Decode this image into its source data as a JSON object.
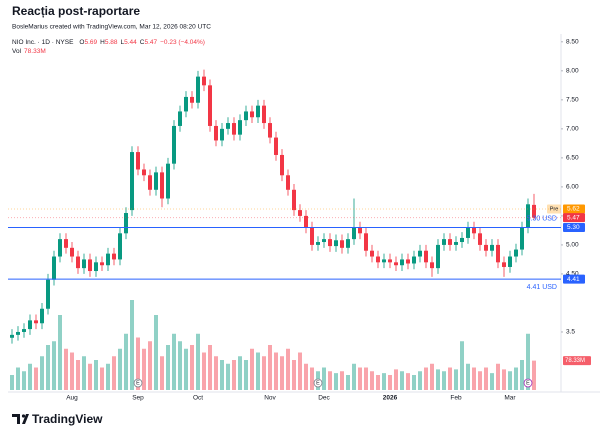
{
  "chart_data": {
    "type": "candlestick",
    "title": "Reacția post-raportare",
    "subtitle": "BosleMarius created with TradingView.com, Mar 12, 2026 08:20 UTC",
    "symbol": "NIO Inc. · 1D · NYSE",
    "ohlc_letters": [
      "O",
      "H",
      "L",
      "C"
    ],
    "change": "−0.23 (−4.04%)",
    "volume_title": "Vol",
    "last_volume_label": "78.33M",
    "earnings_marker": "E",
    "branding": "TradingView",
    "up_color": "#089981",
    "down_color": "#f23645",
    "categories": [
      null,
      null,
      null,
      null,
      null,
      null,
      null,
      null,
      null,
      null,
      "Aug",
      null,
      null,
      null,
      null,
      null,
      null,
      null,
      null,
      null,
      null,
      "Sep",
      null,
      null,
      null,
      null,
      null,
      null,
      null,
      null,
      null,
      "Oct",
      null,
      null,
      null,
      null,
      null,
      null,
      null,
      null,
      null,
      null,
      null,
      "Nov",
      null,
      null,
      null,
      null,
      null,
      null,
      null,
      null,
      "Dec",
      null,
      null,
      null,
      null,
      null,
      null,
      null,
      null,
      null,
      null,
      "2026",
      null,
      null,
      null,
      null,
      null,
      null,
      null,
      null,
      null,
      null,
      "Feb",
      null,
      null,
      null,
      null,
      null,
      null,
      null,
      null,
      "Mar",
      null,
      null,
      null,
      null
    ],
    "open": [
      3.4,
      3.45,
      3.5,
      3.55,
      3.7,
      3.65,
      3.9,
      4.4,
      4.8,
      5.1,
      4.95,
      4.8,
      4.6,
      4.75,
      4.55,
      4.7,
      4.65,
      4.85,
      4.75,
      5.2,
      5.6,
      6.6,
      6.3,
      6.2,
      5.95,
      6.25,
      5.8,
      6.4,
      7.05,
      7.3,
      7.55,
      7.45,
      7.9,
      7.75,
      7.05,
      6.8,
      7.0,
      7.1,
      6.9,
      7.15,
      7.3,
      7.2,
      7.4,
      7.1,
      6.85,
      6.55,
      6.2,
      5.95,
      5.6,
      5.5,
      5.3,
      5.0,
      5.05,
      5.1,
      4.98,
      5.08,
      4.95,
      5.1,
      5.3,
      5.2,
      4.9,
      4.8,
      4.7,
      4.75,
      4.7,
      4.65,
      4.75,
      4.68,
      4.8,
      4.9,
      4.7,
      4.6,
      5.0,
      5.1,
      5.0,
      5.05,
      5.12,
      5.3,
      5.2,
      5.0,
      4.9,
      5.0,
      4.7,
      4.62,
      4.8,
      4.92,
      5.3,
      5.69
    ],
    "high": [
      3.55,
      3.6,
      3.65,
      3.8,
      3.8,
      4.0,
      4.5,
      4.9,
      5.2,
      5.2,
      5.05,
      4.9,
      4.85,
      4.85,
      4.8,
      4.8,
      4.95,
      4.95,
      5.3,
      5.65,
      6.7,
      6.7,
      6.4,
      6.3,
      6.35,
      6.35,
      6.5,
      7.15,
      7.4,
      7.65,
      7.65,
      8.0,
      8.02,
      7.85,
      7.15,
      7.1,
      7.2,
      7.2,
      7.25,
      7.4,
      7.4,
      7.5,
      7.5,
      7.2,
      6.95,
      6.65,
      6.3,
      6.05,
      5.7,
      5.6,
      5.4,
      5.15,
      5.2,
      5.2,
      5.18,
      5.18,
      5.2,
      5.8,
      5.4,
      5.3,
      5.0,
      4.9,
      4.85,
      4.85,
      4.8,
      4.85,
      4.85,
      4.9,
      5.0,
      5.0,
      4.8,
      5.1,
      5.2,
      5.2,
      5.15,
      5.22,
      5.4,
      5.4,
      5.3,
      5.1,
      5.1,
      5.1,
      4.8,
      4.9,
      5.02,
      5.4,
      5.8,
      5.88
    ],
    "low": [
      3.3,
      3.35,
      3.4,
      3.45,
      3.55,
      3.55,
      3.8,
      4.3,
      4.7,
      4.85,
      4.7,
      4.5,
      4.5,
      4.45,
      4.45,
      4.55,
      4.55,
      4.65,
      4.65,
      5.1,
      5.5,
      6.2,
      6.1,
      5.85,
      5.85,
      5.65,
      5.7,
      6.3,
      6.95,
      7.2,
      7.35,
      7.35,
      7.65,
      6.95,
      6.7,
      6.7,
      6.9,
      6.8,
      6.8,
      7.05,
      7.1,
      7.1,
      7.0,
      6.75,
      6.45,
      6.1,
      5.85,
      5.5,
      5.4,
      5.2,
      4.9,
      4.9,
      4.95,
      4.88,
      4.88,
      4.85,
      4.85,
      5.0,
      5.1,
      4.8,
      4.7,
      4.6,
      4.6,
      4.6,
      4.55,
      4.55,
      4.58,
      4.58,
      4.7,
      4.6,
      4.45,
      4.5,
      4.9,
      4.9,
      4.9,
      4.95,
      5.02,
      5.1,
      4.9,
      4.8,
      4.8,
      4.6,
      4.45,
      4.52,
      4.7,
      4.82,
      5.2,
      5.44
    ],
    "close": [
      3.45,
      3.5,
      3.55,
      3.7,
      3.65,
      3.9,
      4.4,
      4.8,
      5.1,
      4.95,
      4.8,
      4.6,
      4.75,
      4.55,
      4.7,
      4.65,
      4.85,
      4.75,
      5.2,
      5.55,
      6.6,
      6.3,
      6.2,
      5.95,
      6.25,
      5.8,
      6.4,
      7.05,
      7.3,
      7.55,
      7.45,
      7.9,
      7.75,
      7.05,
      6.8,
      7.0,
      7.1,
      6.9,
      7.15,
      7.3,
      7.2,
      7.4,
      7.1,
      6.85,
      6.55,
      6.2,
      5.95,
      5.6,
      5.5,
      5.3,
      5.0,
      5.05,
      5.1,
      4.98,
      5.08,
      4.95,
      5.1,
      5.3,
      5.2,
      4.9,
      4.8,
      4.7,
      4.75,
      4.7,
      4.65,
      4.75,
      4.68,
      4.8,
      4.9,
      4.7,
      4.6,
      5.0,
      5.1,
      5.0,
      5.05,
      5.12,
      5.3,
      5.2,
      5.0,
      4.9,
      5.0,
      4.7,
      4.62,
      4.8,
      4.92,
      5.3,
      5.7,
      5.47
    ],
    "volume": [
      40,
      60,
      50,
      70,
      60,
      90,
      120,
      130,
      200,
      110,
      100,
      80,
      90,
      70,
      80,
      60,
      70,
      90,
      110,
      150,
      240,
      140,
      110,
      130,
      200,
      90,
      120,
      150,
      130,
      110,
      120,
      150,
      100,
      120,
      90,
      80,
      70,
      80,
      90,
      80,
      110,
      100,
      90,
      120,
      100,
      90,
      110,
      80,
      100,
      70,
      60,
      50,
      60,
      50,
      45,
      50,
      40,
      70,
      60,
      60,
      50,
      40,
      45,
      40,
      55,
      50,
      45,
      40,
      50,
      60,
      70,
      55,
      50,
      60,
      55,
      130,
      70,
      60,
      50,
      60,
      45,
      70,
      55,
      50,
      60,
      80,
      150,
      78.33
    ],
    "volume_ylim": [
      0,
      240
    ],
    "ylim": [
      2.5,
      8.6
    ],
    "yticks": [
      3.5,
      {
        "value": 4.5,
        "label": "4.50"
      },
      {
        "value": 5,
        "label": "5.00"
      },
      {
        "value": 5.5,
        "label": "5.50"
      },
      {
        "value": 6,
        "label": "6.00"
      },
      {
        "value": 6.5,
        "label": "6.50"
      },
      {
        "value": 7,
        "label": "7.00"
      },
      {
        "value": 7.5,
        "label": "7.50"
      },
      {
        "value": 8,
        "label": "8.00"
      },
      {
        "value": 8.5,
        "label": "8.50"
      }
    ],
    "hlines": [
      {
        "value": 5.3,
        "tag": "5.30",
        "label": "5.30 USD",
        "color": "#2962ff"
      },
      {
        "value": 4.41,
        "label": "4.41 USD",
        "color": "#2962ff"
      }
    ],
    "price_tags": [
      {
        "value": 5.62,
        "label": "Pre",
        "color": "#ff9800"
      },
      {
        "value": 5.47,
        "color": "#f23645"
      }
    ]
  }
}
